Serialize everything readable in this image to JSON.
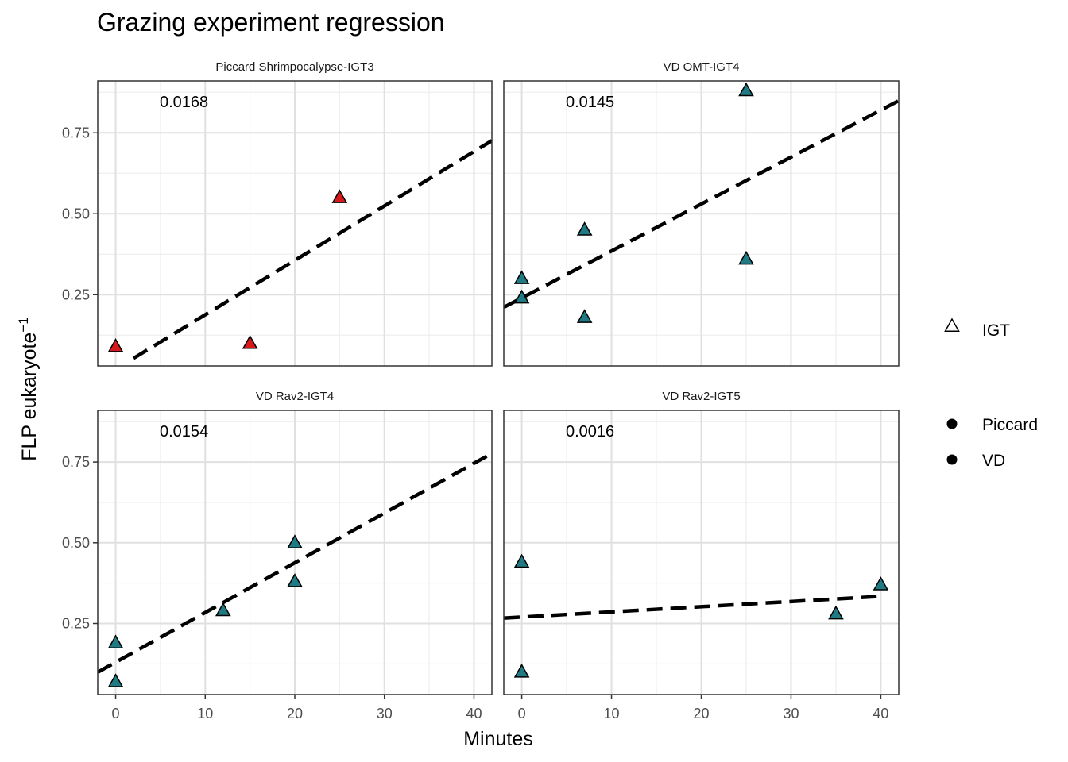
{
  "chart_data": {
    "type": "scatter",
    "title": "Grazing experiment regression",
    "xlabel": "Minutes",
    "ylabel": "FLP eukaryote",
    "ylabel_superscript": "−1",
    "xlim": [
      -2,
      42
    ],
    "ylim": [
      0.03,
      0.91
    ],
    "x_ticks": [
      0,
      10,
      20,
      30,
      40
    ],
    "y_ticks": [
      0.25,
      0.5,
      0.75
    ],
    "y_tick_labels": [
      "0.25",
      "0.50",
      "0.75"
    ],
    "grid": true,
    "legend": {
      "placement": "right",
      "shape_entries": [
        {
          "label": "IGT",
          "shape": "open-triangle"
        }
      ],
      "fill_entries": [
        {
          "label": "Piccard",
          "shape": "filled-circle"
        },
        {
          "label": "VD",
          "shape": "filled-circle"
        }
      ]
    },
    "colors": {
      "Piccard": "#d7191c",
      "VD": "#1f7a84"
    },
    "panels": [
      {
        "label": "Piccard Shrimpocalypse-IGT3",
        "group": "Piccard",
        "annotation": "0.0168",
        "points": [
          {
            "x": 0,
            "y": 0.09
          },
          {
            "x": 15,
            "y": 0.1
          },
          {
            "x": 25,
            "y": 0.55
          }
        ],
        "fit": {
          "intercept": 0.02,
          "slope": 0.0168,
          "x_range": [
            2,
            42
          ]
        }
      },
      {
        "label": "VD OMT-IGT4",
        "group": "VD",
        "annotation": "0.0145",
        "points": [
          {
            "x": 0,
            "y": 0.3
          },
          {
            "x": 0,
            "y": 0.24
          },
          {
            "x": 7,
            "y": 0.45
          },
          {
            "x": 7,
            "y": 0.18
          },
          {
            "x": 25,
            "y": 0.88
          },
          {
            "x": 25,
            "y": 0.36
          }
        ],
        "fit": {
          "intercept": 0.24,
          "slope": 0.0145,
          "x_range": [
            -2,
            42
          ]
        }
      },
      {
        "label": "VD Rav2-IGT4",
        "group": "VD",
        "annotation": "0.0154",
        "points": [
          {
            "x": 0,
            "y": 0.19
          },
          {
            "x": 0,
            "y": 0.07
          },
          {
            "x": 12,
            "y": 0.29
          },
          {
            "x": 20,
            "y": 0.5
          },
          {
            "x": 20,
            "y": 0.38
          }
        ],
        "fit": {
          "intercept": 0.13,
          "slope": 0.0154,
          "x_range": [
            -2,
            42
          ]
        }
      },
      {
        "label": "VD Rav2-IGT5",
        "group": "VD",
        "annotation": "0.0016",
        "points": [
          {
            "x": 0,
            "y": 0.44
          },
          {
            "x": 0,
            "y": 0.1
          },
          {
            "x": 35,
            "y": 0.28
          },
          {
            "x": 40,
            "y": 0.37
          }
        ],
        "fit": {
          "intercept": 0.27,
          "slope": 0.0016,
          "x_range": [
            -2,
            40
          ]
        }
      }
    ]
  }
}
